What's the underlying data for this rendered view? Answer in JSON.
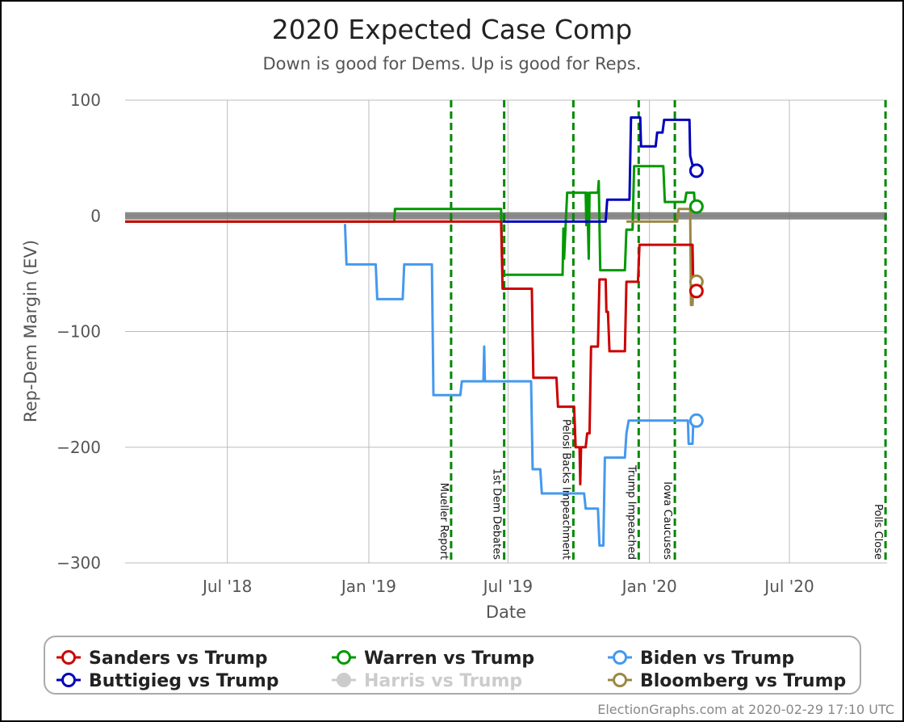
{
  "chart_data": {
    "type": "line",
    "title": "2020 Expected Case Comp",
    "subtitle": "Down is good for Dems. Up is good for Reps.",
    "xlabel": "Date",
    "ylabel": "Rep-Dem Margin (EV)",
    "xlim": [
      "2018-02-18",
      "2020-11-05"
    ],
    "ylim": [
      -300,
      100
    ],
    "x_ticks": [
      {
        "date": "2018-07-01",
        "label": "Jul '18"
      },
      {
        "date": "2019-01-01",
        "label": "Jan '19"
      },
      {
        "date": "2019-07-01",
        "label": "Jul '19"
      },
      {
        "date": "2020-01-01",
        "label": "Jan '20"
      },
      {
        "date": "2020-07-01",
        "label": "Jul '20"
      }
    ],
    "y_ticks": [
      {
        "value": 100,
        "label": "100"
      },
      {
        "value": 0,
        "label": "0"
      },
      {
        "value": -100,
        "label": "−100"
      },
      {
        "value": -200,
        "label": "−200"
      },
      {
        "value": -300,
        "label": "−300"
      }
    ],
    "grid": true,
    "zero_band": {
      "value": 0,
      "color": "#777777"
    },
    "events": [
      {
        "date": "2019-04-18",
        "label": "Mueller Report"
      },
      {
        "date": "2019-06-26",
        "label": "1st Dem Debates"
      },
      {
        "date": "2019-09-24",
        "label": "Pelosi Backs Impeachment"
      },
      {
        "date": "2019-12-18",
        "label": "Trump Impeached"
      },
      {
        "date": "2020-02-03",
        "label": "Iowa Caucuses"
      },
      {
        "date": "2020-11-03",
        "label": "Polls Close"
      }
    ],
    "event_color": "#008800",
    "series": [
      {
        "name": "Biden vs Trump",
        "color": "#4499ee",
        "points": [
          [
            "2018-12-01",
            -7
          ],
          [
            "2018-12-03",
            -42
          ],
          [
            "2019-01-10",
            -42
          ],
          [
            "2019-01-12",
            -72
          ],
          [
            "2019-02-14",
            -72
          ],
          [
            "2019-02-16",
            -42
          ],
          [
            "2019-03-24",
            -42
          ],
          [
            "2019-03-26",
            -155
          ],
          [
            "2019-04-30",
            -155
          ],
          [
            "2019-05-02",
            -143
          ],
          [
            "2019-05-30",
            -143
          ],
          [
            "2019-05-31",
            -113
          ],
          [
            "2019-06-01",
            -143
          ],
          [
            "2019-07-31",
            -143
          ],
          [
            "2019-08-02",
            -219
          ],
          [
            "2019-08-12",
            -219
          ],
          [
            "2019-08-14",
            -240
          ],
          [
            "2019-10-08",
            -240
          ],
          [
            "2019-10-10",
            -253
          ],
          [
            "2019-10-26",
            -253
          ],
          [
            "2019-10-28",
            -285
          ],
          [
            "2019-11-02",
            -285
          ],
          [
            "2019-11-04",
            -209
          ],
          [
            "2019-11-30",
            -209
          ],
          [
            "2019-12-02",
            -188
          ],
          [
            "2019-12-05",
            -177
          ],
          [
            "2020-02-20",
            -177
          ],
          [
            "2020-02-21",
            -197
          ],
          [
            "2020-02-26",
            -197
          ],
          [
            "2020-02-27",
            -177
          ]
        ],
        "current": [
          "2020-02-29",
          -177
        ]
      },
      {
        "name": "Warren vs Trump",
        "color": "#009900",
        "points": [
          [
            "2018-02-18",
            -5
          ],
          [
            "2019-02-03",
            -5
          ],
          [
            "2019-02-04",
            6
          ],
          [
            "2019-06-22",
            6
          ],
          [
            "2019-06-24",
            -51
          ],
          [
            "2019-09-10",
            -51
          ],
          [
            "2019-09-11",
            -11
          ],
          [
            "2019-09-12",
            -37
          ],
          [
            "2019-09-14",
            -8
          ],
          [
            "2019-09-16",
            20
          ],
          [
            "2019-10-10",
            20
          ],
          [
            "2019-10-11",
            -8
          ],
          [
            "2019-10-12",
            20
          ],
          [
            "2019-10-14",
            -37
          ],
          [
            "2019-10-15",
            20
          ],
          [
            "2019-10-26",
            20
          ],
          [
            "2019-10-27",
            30
          ],
          [
            "2019-10-29",
            -47
          ],
          [
            "2019-11-30",
            -47
          ],
          [
            "2019-12-02",
            -12
          ],
          [
            "2019-12-10",
            -12
          ],
          [
            "2019-12-12",
            43
          ],
          [
            "2020-01-19",
            43
          ],
          [
            "2020-01-21",
            12
          ],
          [
            "2020-02-16",
            12
          ],
          [
            "2020-02-18",
            20
          ],
          [
            "2020-02-28",
            20
          ],
          [
            "2020-02-29",
            8
          ]
        ],
        "current": [
          "2020-02-29",
          8
        ]
      },
      {
        "name": "Buttigieg vs Trump",
        "color": "#0000bb",
        "points": [
          [
            "2019-06-24",
            -5
          ],
          [
            "2019-11-05",
            -5
          ],
          [
            "2019-11-07",
            14
          ],
          [
            "2019-12-06",
            14
          ],
          [
            "2019-12-08",
            85
          ],
          [
            "2019-12-20",
            85
          ],
          [
            "2019-12-21",
            60
          ],
          [
            "2020-01-09",
            60
          ],
          [
            "2020-01-11",
            72
          ],
          [
            "2020-01-18",
            72
          ],
          [
            "2020-01-20",
            83
          ],
          [
            "2020-02-22",
            83
          ],
          [
            "2020-02-23",
            52
          ],
          [
            "2020-02-26",
            44
          ],
          [
            "2020-02-29",
            39
          ]
        ],
        "current": [
          "2020-02-29",
          39
        ]
      },
      {
        "name": "Harris vs Trump",
        "color": "#cccccc",
        "points": [],
        "current": null
      },
      {
        "name": "Bloomberg vs Trump",
        "color": "#998844",
        "points": [
          [
            "2019-12-02",
            -5
          ],
          [
            "2020-02-06",
            -5
          ],
          [
            "2020-02-08",
            6
          ],
          [
            "2020-02-23",
            6
          ],
          [
            "2020-02-24",
            -77
          ],
          [
            "2020-02-26",
            -77
          ],
          [
            "2020-02-27",
            -57
          ]
        ],
        "current": [
          "2020-02-29",
          -57
        ]
      },
      {
        "name": "Sanders vs Trump",
        "color": "#cc0000",
        "points": [
          [
            "2018-02-18",
            -5
          ],
          [
            "2019-06-22",
            -5
          ],
          [
            "2019-06-24",
            -63
          ],
          [
            "2019-08-01",
            -63
          ],
          [
            "2019-08-03",
            -140
          ],
          [
            "2019-09-02",
            -140
          ],
          [
            "2019-09-04",
            -165
          ],
          [
            "2019-09-25",
            -165
          ],
          [
            "2019-09-27",
            -200
          ],
          [
            "2019-10-02",
            -200
          ],
          [
            "2019-10-03",
            -232
          ],
          [
            "2019-10-04",
            -200
          ],
          [
            "2019-10-10",
            -200
          ],
          [
            "2019-10-12",
            -188
          ],
          [
            "2019-10-15",
            -188
          ],
          [
            "2019-10-17",
            -113
          ],
          [
            "2019-10-26",
            -113
          ],
          [
            "2019-10-28",
            -55
          ],
          [
            "2019-11-05",
            -55
          ],
          [
            "2019-11-06",
            -83
          ],
          [
            "2019-11-08",
            -83
          ],
          [
            "2019-11-10",
            -117
          ],
          [
            "2019-11-30",
            -117
          ],
          [
            "2019-12-02",
            -57
          ],
          [
            "2019-12-17",
            -57
          ],
          [
            "2019-12-19",
            -25
          ],
          [
            "2020-02-26",
            -25
          ],
          [
            "2020-02-27",
            -65
          ]
        ],
        "current": [
          "2020-02-29",
          -65
        ]
      }
    ]
  },
  "legend": {
    "placement": "bottom",
    "items": [
      {
        "name": "Sanders vs Trump",
        "color": "#cc0000",
        "style": "ring"
      },
      {
        "name": "Warren vs Trump",
        "color": "#009900",
        "style": "ring"
      },
      {
        "name": "Biden vs Trump",
        "color": "#4499ee",
        "style": "ring"
      },
      {
        "name": "Buttigieg vs Trump",
        "color": "#0000bb",
        "style": "ring"
      },
      {
        "name": "Harris vs Trump",
        "color": "#cccccc",
        "style": "dot"
      },
      {
        "name": "Bloomberg vs Trump",
        "color": "#998844",
        "style": "ring"
      }
    ]
  },
  "credit": "ElectionGraphs.com at 2020-02-29 17:10 UTC"
}
